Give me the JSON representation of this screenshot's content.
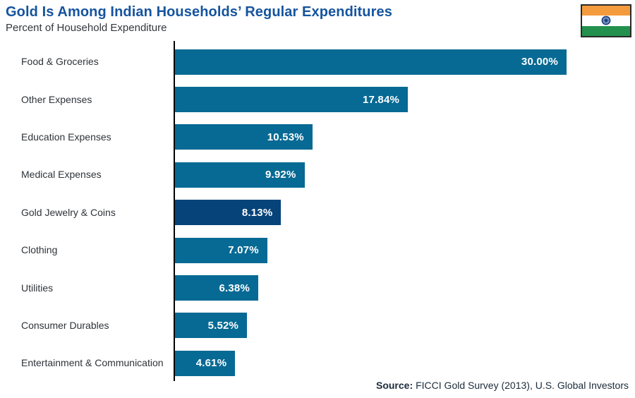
{
  "header": {
    "title": "Gold Is Among Indian Households’ Regular Expenditures",
    "subtitle": "Percent of Household Expenditure"
  },
  "flag": {
    "country": "India",
    "saffron": "#F49B3E",
    "white": "#FFFFFF",
    "green": "#23914D",
    "chakra": "#123A80",
    "border": "#2A2A2A"
  },
  "chart_data": {
    "type": "bar",
    "orientation": "horizontal",
    "title": "Gold Is Among Indian Households’ Regular Expenditures",
    "subtitle": "Percent of Household Expenditure",
    "categories": [
      "Food & Groceries",
      "Other Expenses",
      "Education Expenses",
      "Medical Expenses",
      "Gold Jewelry & Coins",
      "Clothing",
      "Utilities",
      "Consumer Durables",
      "Entertainment & Communication"
    ],
    "values": [
      30.0,
      17.84,
      10.53,
      9.92,
      8.13,
      7.07,
      6.38,
      5.52,
      4.61
    ],
    "value_labels": [
      "30.00%",
      "17.84%",
      "10.53%",
      "9.92%",
      "8.13%",
      "7.07%",
      "6.38%",
      "5.52%",
      "4.61%"
    ],
    "xlim": [
      0,
      30
    ],
    "grid": false,
    "legend": false,
    "bar_color": "#076A94",
    "highlight_index": 4,
    "highlight_color": "#064379",
    "highlight_category": "Gold Jewelry & Coins",
    "value_label_position": "inside-end",
    "axis_color": "#000000"
  },
  "footer": {
    "source_label": "Source:",
    "source_text": "FICCI Gold Survey (2013), U.S. Global Investors"
  }
}
